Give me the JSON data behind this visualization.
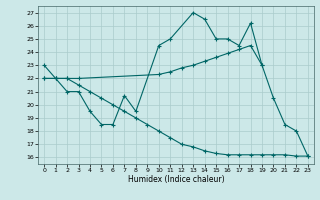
{
  "xlabel": "Humidex (Indice chaleur)",
  "background_color": "#cce8e8",
  "grid_color": "#aacccc",
  "line_color": "#006666",
  "xlim": [
    -0.5,
    23.5
  ],
  "ylim": [
    15.5,
    27.5
  ],
  "yticks": [
    16,
    17,
    18,
    19,
    20,
    21,
    22,
    23,
    24,
    25,
    26,
    27
  ],
  "xticks": [
    0,
    1,
    2,
    3,
    4,
    5,
    6,
    7,
    8,
    9,
    10,
    11,
    12,
    13,
    14,
    15,
    16,
    17,
    18,
    19,
    20,
    21,
    22,
    23
  ],
  "line1_x": [
    0,
    1,
    2,
    3,
    4,
    5,
    6,
    7,
    8,
    10,
    11,
    13,
    14,
    15,
    16,
    17,
    18,
    19,
    20,
    21,
    22,
    23
  ],
  "line1_y": [
    23.0,
    22.0,
    21.0,
    21.0,
    19.5,
    18.5,
    18.5,
    20.7,
    19.5,
    24.5,
    25.0,
    27.0,
    26.5,
    25.0,
    25.0,
    24.5,
    26.2,
    23.0,
    20.5,
    18.5,
    18.0,
    16.1
  ],
  "line2_x": [
    0,
    1,
    2,
    3,
    10,
    11,
    12,
    13,
    14,
    15,
    16,
    17,
    18,
    19
  ],
  "line2_y": [
    22.0,
    22.0,
    22.0,
    22.0,
    22.3,
    22.5,
    22.8,
    23.0,
    23.3,
    23.6,
    23.9,
    24.2,
    24.5,
    23.0
  ],
  "line3_x": [
    0,
    1,
    2,
    3,
    4,
    5,
    6,
    7,
    8,
    9,
    10,
    11,
    12,
    13,
    14,
    15,
    16,
    17,
    18,
    19,
    20,
    21,
    22,
    23
  ],
  "line3_y": [
    22.0,
    22.0,
    22.0,
    21.5,
    21.0,
    20.5,
    20.0,
    19.5,
    19.0,
    18.5,
    18.0,
    17.5,
    17.0,
    16.8,
    16.5,
    16.3,
    16.2,
    16.2,
    16.2,
    16.2,
    16.2,
    16.2,
    16.1,
    16.1
  ]
}
